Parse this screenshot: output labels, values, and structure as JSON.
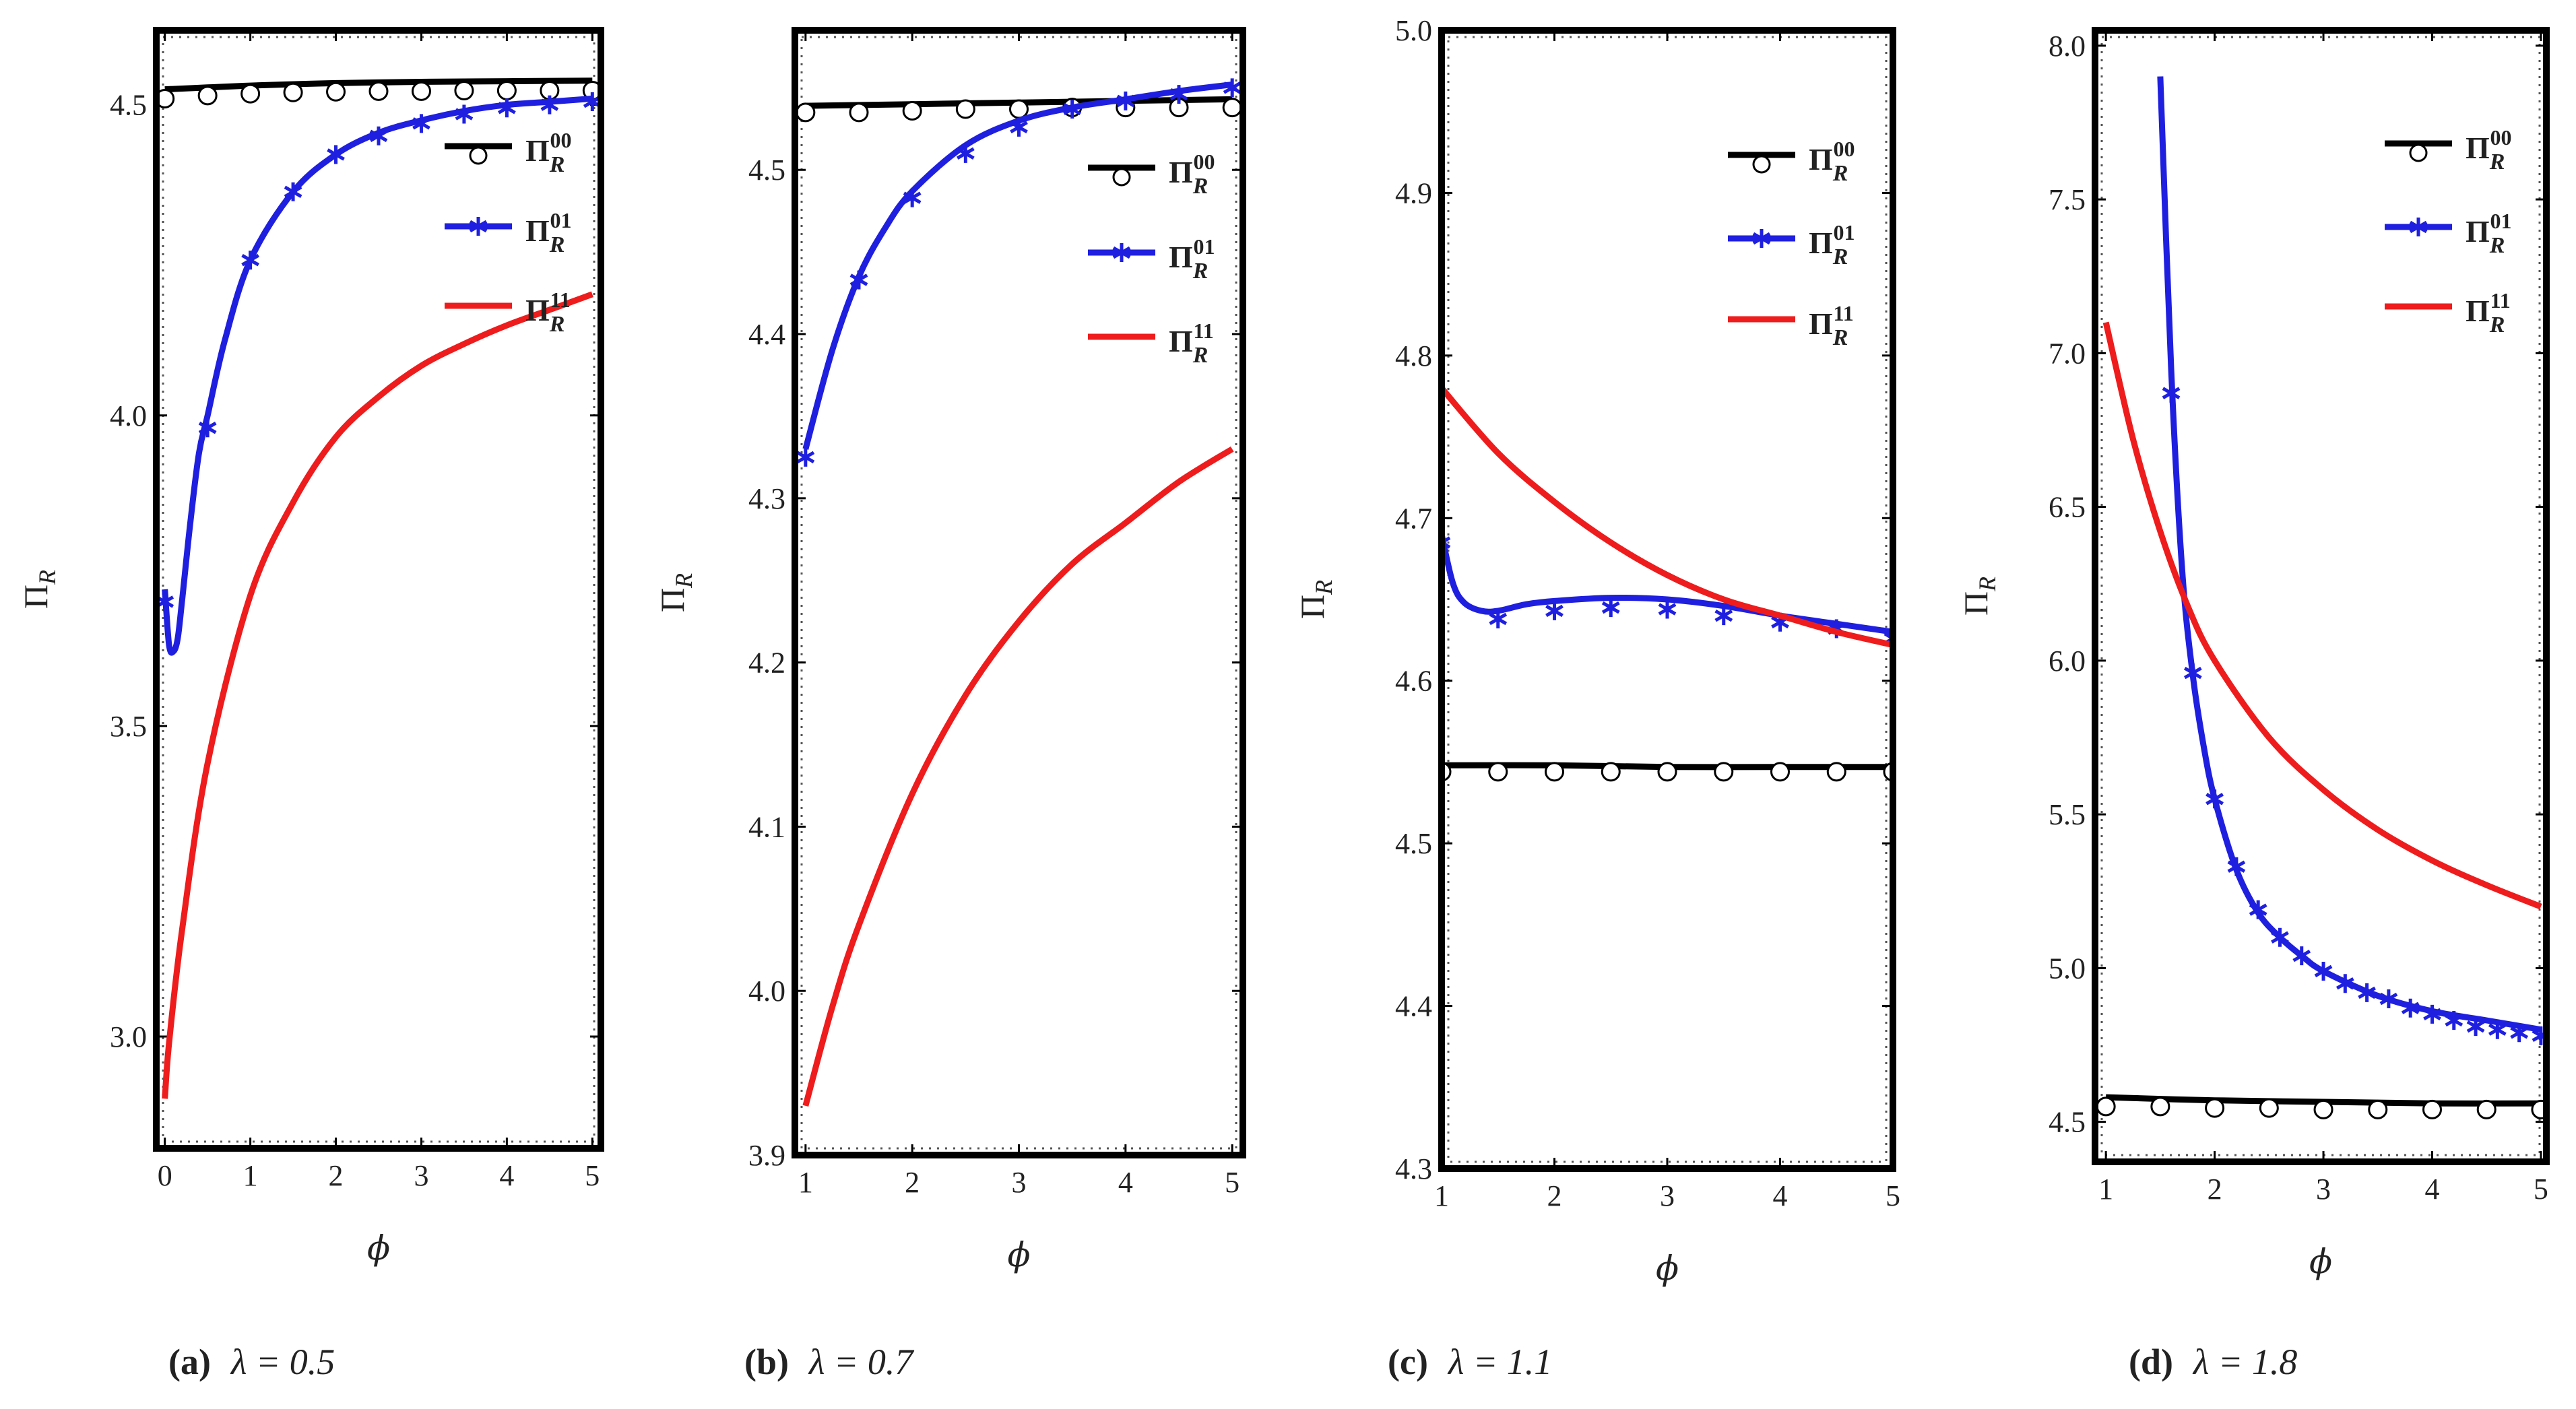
{
  "chart_data": [
    {
      "type": "line",
      "caption_tag": "(a)",
      "caption_param": "λ = 0.5",
      "xlabel": "ϕ",
      "ylabel": "Π",
      "ylabel_sub": "R",
      "xlim": [
        -0.1,
        5.1
      ],
      "ylim": [
        2.82,
        4.62
      ],
      "xticks": [
        0,
        1,
        2,
        3,
        4,
        5
      ],
      "yticks": [
        3.0,
        3.5,
        4.0,
        4.5
      ],
      "series": [
        {
          "name": "Π_R^00",
          "color": "#000000",
          "marker": "circle",
          "x": [
            0,
            0.5,
            1,
            2,
            3,
            4,
            5
          ],
          "y": [
            4.525,
            4.528,
            4.531,
            4.535,
            4.537,
            4.538,
            4.539
          ],
          "mx": [
            0,
            0.5,
            1,
            1.5,
            2,
            2.5,
            3,
            3.5,
            4,
            4.5,
            5
          ],
          "my": [
            4.51,
            4.515,
            4.518,
            4.52,
            4.521,
            4.522,
            4.522,
            4.523,
            4.523,
            4.523,
            4.523
          ]
        },
        {
          "name": "Π_R^01",
          "color": "#1f1fe0",
          "marker": "star",
          "x": [
            0,
            0.05,
            0.1,
            0.15,
            0.2,
            0.3,
            0.4,
            0.5,
            0.7,
            1,
            1.5,
            2,
            2.5,
            3,
            3.5,
            4,
            4.5,
            5
          ],
          "y": [
            3.72,
            3.63,
            3.62,
            3.64,
            3.7,
            3.83,
            3.94,
            4.0,
            4.12,
            4.25,
            4.36,
            4.42,
            4.455,
            4.475,
            4.49,
            4.5,
            4.505,
            4.51
          ],
          "mx": [
            0,
            0.5,
            1,
            1.5,
            2,
            2.5,
            3,
            3.5,
            4,
            4.5,
            5
          ],
          "my": [
            3.7,
            3.98,
            4.25,
            4.36,
            4.42,
            4.45,
            4.47,
            4.485,
            4.495,
            4.5,
            4.505
          ]
        },
        {
          "name": "Π_R^11",
          "color": "#ee1c1c",
          "marker": "none",
          "x": [
            0,
            0.05,
            0.2,
            0.5,
            1,
            1.5,
            2,
            2.5,
            3,
            3.5,
            4,
            4.5,
            5
          ],
          "y": [
            2.9,
            2.99,
            3.17,
            3.44,
            3.71,
            3.86,
            3.965,
            4.03,
            4.08,
            4.115,
            4.145,
            4.17,
            4.195
          ]
        }
      ],
      "legend_location": "right"
    },
    {
      "type": "line",
      "caption_tag": "(b)",
      "caption_param": "λ = 0.7",
      "xlabel": "ϕ",
      "ylabel": "Π",
      "ylabel_sub": "R",
      "xlim": [
        0.9,
        5.1
      ],
      "ylim": [
        3.9,
        4.585
      ],
      "xticks": [
        1,
        2,
        3,
        4,
        5
      ],
      "yticks": [
        3.9,
        4.0,
        4.1,
        4.2,
        4.3,
        4.4,
        4.5
      ],
      "series": [
        {
          "name": "Π_R^00",
          "color": "#000000",
          "marker": "circle",
          "x": [
            1,
            2,
            3,
            4,
            5
          ],
          "y": [
            4.539,
            4.54,
            4.541,
            4.542,
            4.543
          ],
          "mx": [
            1,
            1.5,
            2,
            2.5,
            3,
            3.5,
            4,
            4.5,
            5
          ],
          "my": [
            4.535,
            4.535,
            4.536,
            4.537,
            4.537,
            4.538,
            4.538,
            4.538,
            4.538
          ]
        },
        {
          "name": "Π_R^01",
          "color": "#1f1fe0",
          "marker": "star",
          "x": [
            1,
            1.25,
            1.5,
            1.75,
            2,
            2.5,
            3,
            3.5,
            4,
            4.5,
            5
          ],
          "y": [
            4.33,
            4.39,
            4.435,
            4.465,
            4.487,
            4.515,
            4.53,
            4.538,
            4.543,
            4.548,
            4.552
          ],
          "mx": [
            1,
            1.5,
            2,
            2.5,
            3,
            3.5,
            4,
            4.5,
            5
          ],
          "my": [
            4.325,
            4.433,
            4.483,
            4.51,
            4.526,
            4.537,
            4.542,
            4.546,
            4.55
          ]
        },
        {
          "name": "Π_R^11",
          "color": "#ee1c1c",
          "marker": "none",
          "x": [
            1,
            1.25,
            1.5,
            2,
            2.5,
            3,
            3.5,
            4,
            4.5,
            5
          ],
          "y": [
            3.93,
            3.99,
            4.04,
            4.12,
            4.18,
            4.225,
            4.26,
            4.285,
            4.31,
            4.33
          ]
        }
      ],
      "legend_location": "right"
    },
    {
      "type": "line",
      "caption_tag": "(c)",
      "caption_param": "λ = 1.1",
      "xlabel": "ϕ",
      "ylabel": "Π",
      "ylabel_sub": "R",
      "xlim": [
        1,
        5
      ],
      "ylim": [
        4.3,
        5.0
      ],
      "xticks": [
        1,
        2,
        3,
        4,
        5
      ],
      "yticks": [
        4.3,
        4.4,
        4.5,
        4.6,
        4.7,
        4.8,
        4.9,
        5.0
      ],
      "series": [
        {
          "name": "Π_R^00",
          "color": "#000000",
          "marker": "circle",
          "x": [
            1,
            2,
            3,
            4,
            5
          ],
          "y": [
            4.548,
            4.548,
            4.547,
            4.547,
            4.547
          ],
          "mx": [
            1,
            1.5,
            2,
            2.5,
            3,
            3.5,
            4,
            4.5,
            5
          ],
          "my": [
            4.544,
            4.544,
            4.544,
            4.544,
            4.544,
            4.544,
            4.544,
            4.544,
            4.544
          ]
        },
        {
          "name": "Π_R^01",
          "color": "#1f1fe0",
          "marker": "star",
          "x": [
            1,
            1.1,
            1.2,
            1.35,
            1.5,
            1.75,
            2,
            2.5,
            3,
            3.5,
            4,
            4.5,
            5
          ],
          "y": [
            4.69,
            4.66,
            4.648,
            4.643,
            4.643,
            4.647,
            4.649,
            4.651,
            4.65,
            4.646,
            4.64,
            4.635,
            4.63
          ],
          "mx": [
            1,
            1.5,
            2,
            2.5,
            3,
            3.5,
            4,
            4.5,
            5
          ],
          "my": [
            4.685,
            4.638,
            4.643,
            4.645,
            4.644,
            4.64,
            4.636,
            4.632,
            4.626
          ]
        },
        {
          "name": "Π_R^11",
          "color": "#ee1c1c",
          "marker": "none",
          "x": [
            1,
            1.5,
            2,
            2.5,
            3,
            3.5,
            4,
            4.5,
            5
          ],
          "y": [
            4.78,
            4.74,
            4.71,
            4.685,
            4.665,
            4.65,
            4.64,
            4.63,
            4.622
          ]
        }
      ],
      "legend_location": "top-right"
    },
    {
      "type": "line",
      "caption_tag": "(d)",
      "caption_param": "λ = 1.8",
      "xlabel": "ϕ",
      "ylabel": "Π",
      "ylabel_sub": "R",
      "xlim": [
        0.9,
        5.05
      ],
      "ylim": [
        4.37,
        8.05
      ],
      "xticks": [
        1,
        2,
        3,
        4,
        5
      ],
      "yticks": [
        4.5,
        5.0,
        5.5,
        6.0,
        6.5,
        7.0,
        7.5,
        8.0
      ],
      "series": [
        {
          "name": "Π_R^00",
          "color": "#000000",
          "marker": "circle",
          "x": [
            1,
            2,
            3,
            4,
            5
          ],
          "y": [
            4.58,
            4.57,
            4.565,
            4.56,
            4.56
          ],
          "mx": [
            1,
            1.5,
            2,
            2.5,
            3,
            3.5,
            4,
            4.5,
            5
          ],
          "my": [
            4.55,
            4.55,
            4.545,
            4.545,
            4.54,
            4.54,
            4.54,
            4.54,
            4.54
          ]
        },
        {
          "name": "Π_R^01",
          "color": "#1f1fe0",
          "marker": "star",
          "x": [
            1.5,
            1.6,
            1.7,
            1.8,
            1.9,
            2.0,
            2.2,
            2.4,
            2.6,
            2.8,
            3.0,
            3.5,
            4.0,
            4.5,
            5.0
          ],
          "y": [
            7.9,
            6.95,
            6.3,
            5.95,
            5.72,
            5.55,
            5.32,
            5.18,
            5.1,
            5.04,
            4.99,
            4.91,
            4.86,
            4.83,
            4.8
          ],
          "mx": [
            1.6,
            1.8,
            2.0,
            2.2,
            2.4,
            2.6,
            2.8,
            3.0,
            3.2,
            3.4,
            3.6,
            3.8,
            4.0,
            4.2,
            4.4,
            4.6,
            4.8,
            5.0
          ],
          "my": [
            6.87,
            5.96,
            5.55,
            5.33,
            5.19,
            5.1,
            5.04,
            4.99,
            4.95,
            4.92,
            4.9,
            4.87,
            4.85,
            4.83,
            4.81,
            4.8,
            4.79,
            4.78
          ]
        },
        {
          "name": "Π_R^11",
          "color": "#ee1c1c",
          "marker": "none",
          "x": [
            1,
            1.25,
            1.5,
            1.75,
            2,
            2.5,
            3,
            3.5,
            4,
            4.5,
            5
          ],
          "y": [
            7.1,
            6.72,
            6.42,
            6.18,
            6.0,
            5.75,
            5.58,
            5.45,
            5.35,
            5.27,
            5.2
          ]
        }
      ],
      "legend_location": "top-right"
    }
  ]
}
